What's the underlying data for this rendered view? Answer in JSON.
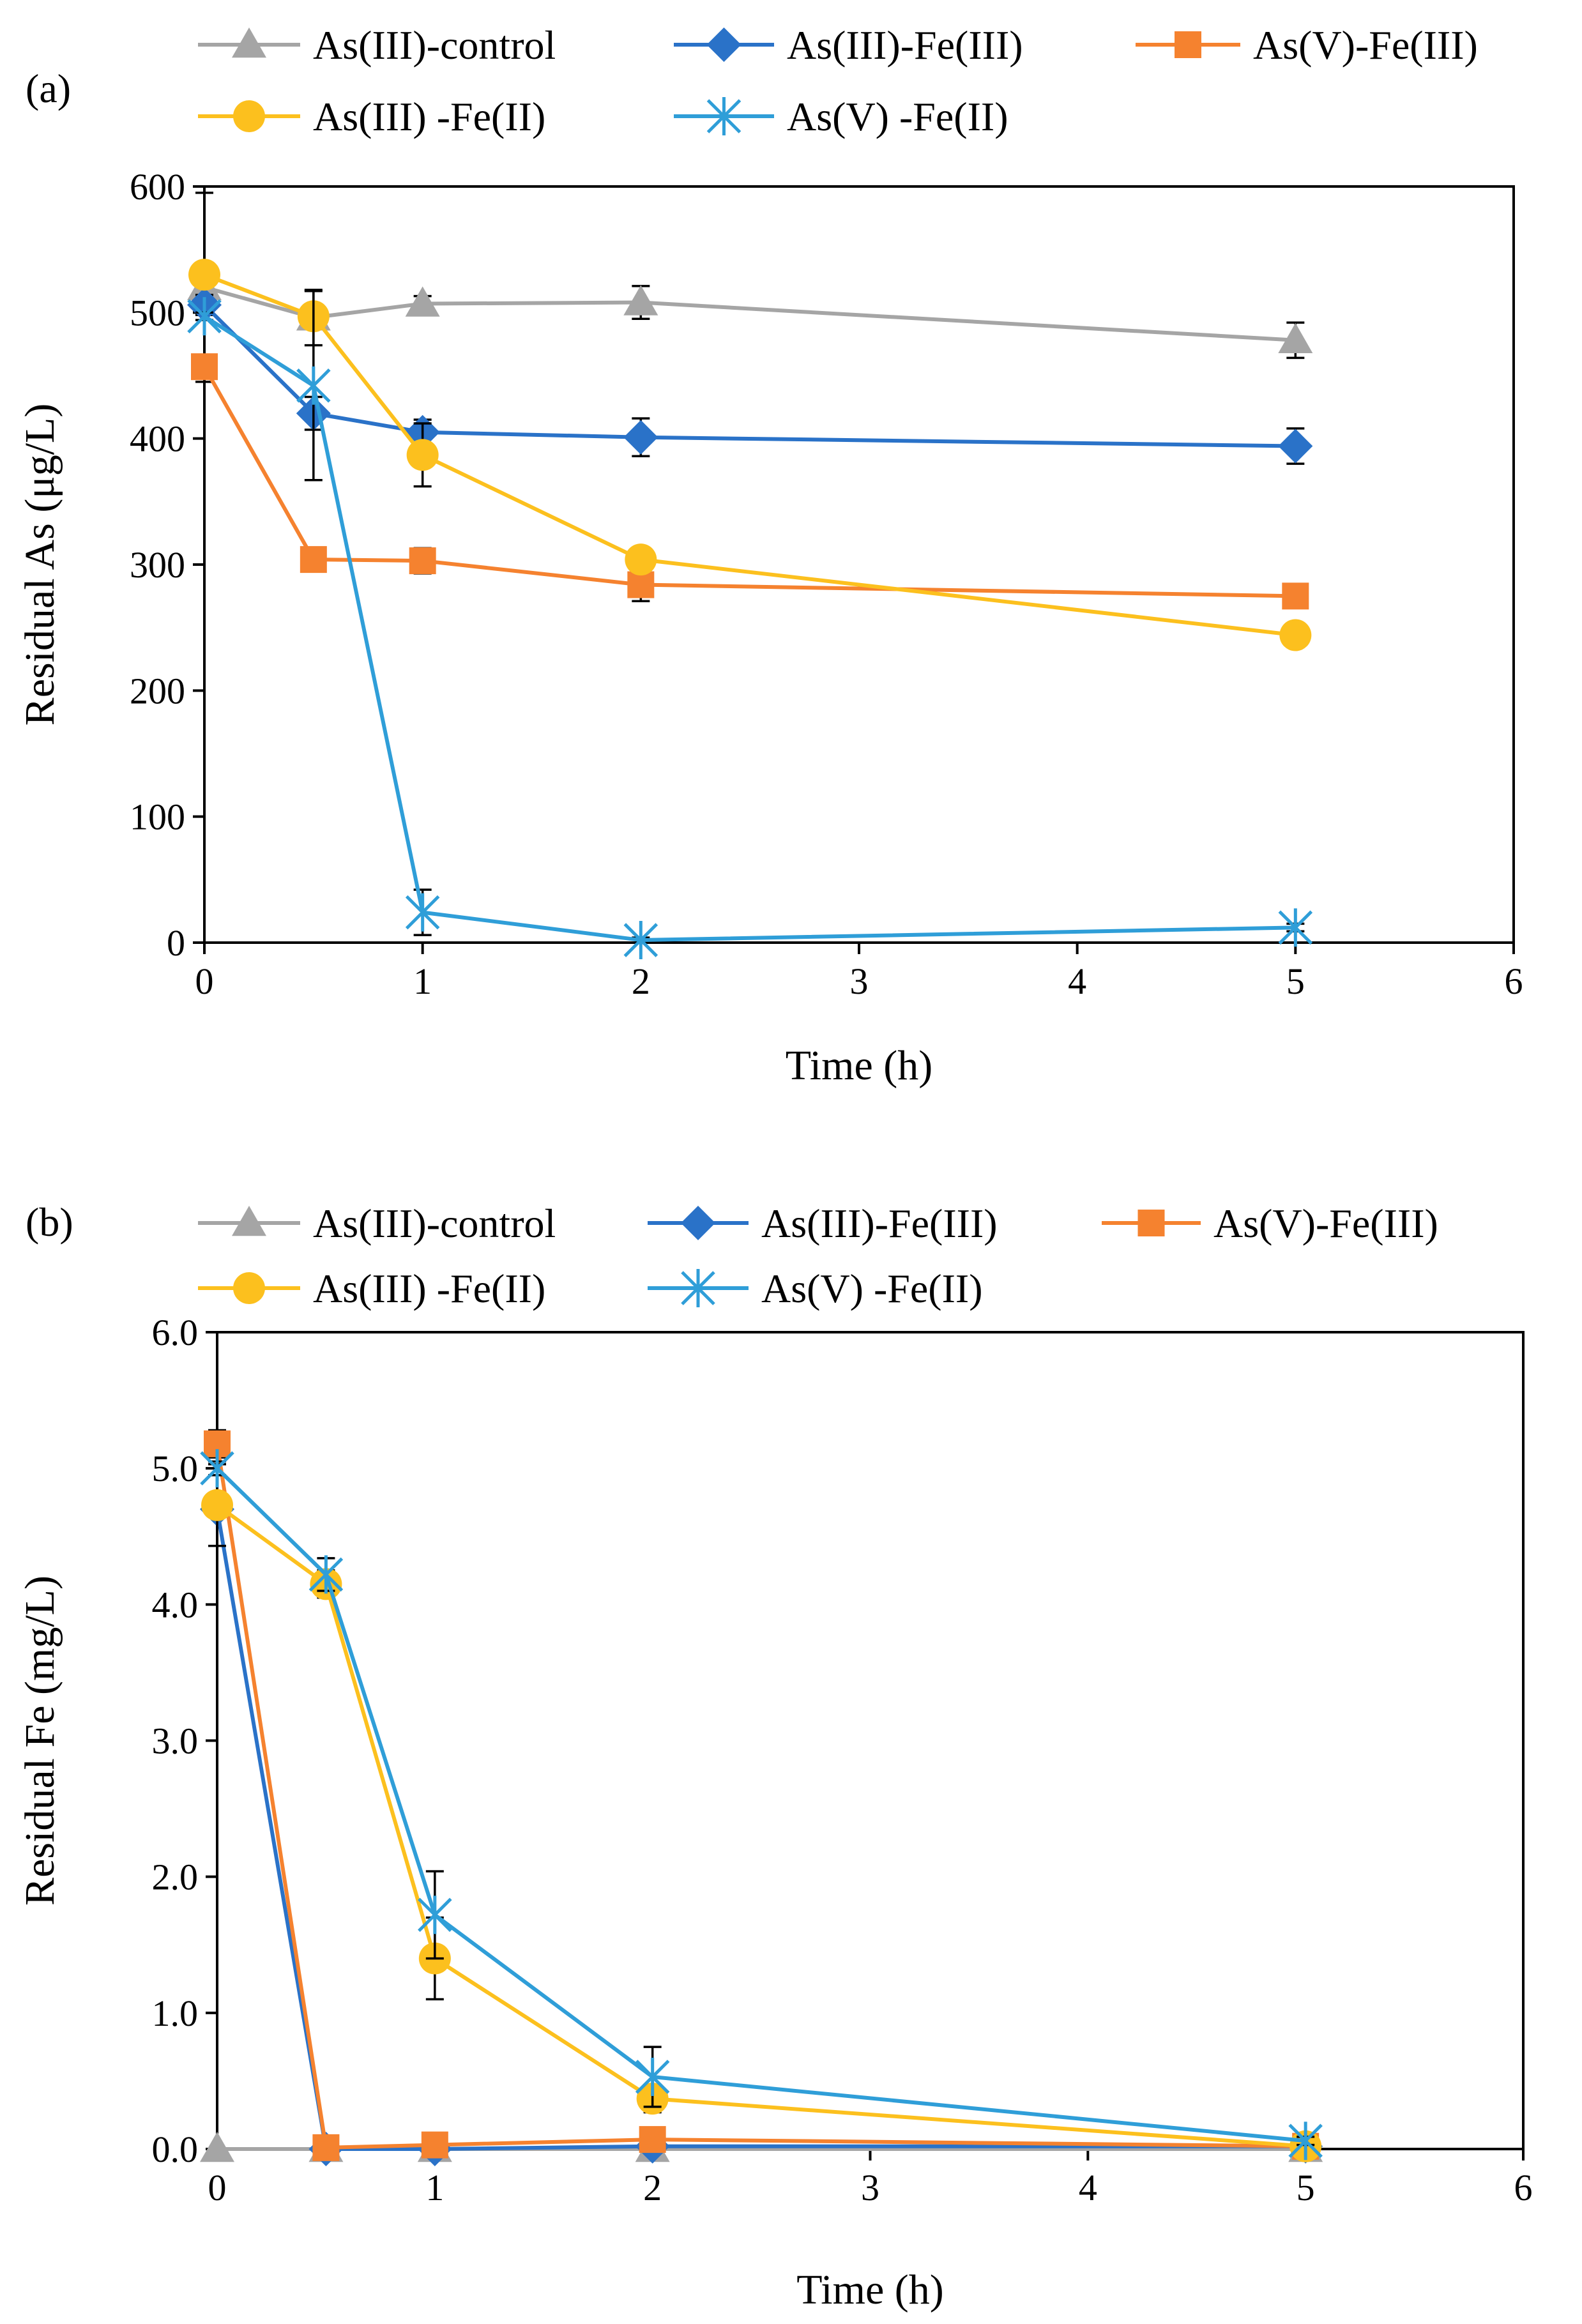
{
  "colors": {
    "As(III)-control": "#a5a5a5",
    "As(III)-Fe(III)": "#2a72c8",
    "As(V)-Fe(III)": "#f5822f",
    "As(III) -Fe(II)": "#fcc01e",
    "As(V) -Fe(II)": "#2f9ed8"
  },
  "chart_data": [
    {
      "type": "line",
      "panel_label": "(a)",
      "xlabel": "Time (h)",
      "ylabel": "Residual As (μg/L)",
      "xlim": [
        0,
        6
      ],
      "ylim": [
        0,
        600
      ],
      "xticks": [
        0,
        1,
        2,
        3,
        4,
        5,
        6
      ],
      "yticks": [
        0,
        100,
        200,
        300,
        400,
        500,
        600
      ],
      "ytick_labels": [
        "0",
        "100",
        "200",
        "300",
        "400",
        "500",
        "600"
      ],
      "legend_position": "top",
      "series": [
        {
          "name": "As(III)-control",
          "marker": "triangle",
          "x": [
            0,
            0.5,
            1,
            2,
            5
          ],
          "y": [
            520,
            496,
            507,
            508,
            478
          ],
          "err": [
            75,
            22,
            6,
            13,
            14
          ]
        },
        {
          "name": "As(III)-Fe(III)",
          "marker": "diamond",
          "x": [
            0,
            0.5,
            1,
            2,
            5
          ],
          "y": [
            506,
            420,
            405,
            401,
            394
          ],
          "err": [
            8,
            13,
            10,
            15,
            14
          ]
        },
        {
          "name": "As(V)-Fe(III)",
          "marker": "square",
          "x": [
            0,
            0.5,
            1,
            2,
            5
          ],
          "y": [
            457,
            304,
            303,
            284,
            275
          ],
          "err": [
            5,
            5,
            10,
            13,
            5
          ]
        },
        {
          "name": "As(III) -Fe(II)",
          "marker": "circle",
          "x": [
            0,
            0.5,
            1,
            2,
            5
          ],
          "y": [
            530,
            497,
            387,
            304,
            244
          ],
          "err": [
            5,
            5,
            25,
            5,
            5
          ]
        },
        {
          "name": "As(V) -Fe(II)",
          "marker": "star",
          "x": [
            0,
            0.5,
            1,
            2,
            5
          ],
          "y": [
            497,
            442,
            24,
            2,
            12
          ],
          "err": [
            3,
            75,
            18,
            2,
            3
          ]
        }
      ]
    },
    {
      "type": "line",
      "panel_label": "(b)",
      "xlabel": "Time (h)",
      "ylabel": "Residual Fe  (mg/L)",
      "xlim": [
        0,
        6
      ],
      "ylim": [
        0,
        6
      ],
      "xticks": [
        0,
        1,
        2,
        3,
        4,
        5,
        6
      ],
      "yticks": [
        0,
        1,
        2,
        3,
        4,
        5,
        6
      ],
      "ytick_labels": [
        "0.0",
        "1.0",
        "2.0",
        "3.0",
        "4.0",
        "5.0",
        "6.0"
      ],
      "legend_position": "top",
      "series": [
        {
          "name": "As(III)-control",
          "marker": "triangle",
          "x": [
            0,
            0.5,
            1,
            2,
            5
          ],
          "y": [
            0,
            0,
            0,
            0,
            0
          ],
          "err": [
            0,
            0,
            0,
            0,
            0
          ]
        },
        {
          "name": "As(III)-Fe(III)",
          "marker": "diamond",
          "x": [
            0,
            0.5,
            1,
            2,
            5
          ],
          "y": [
            4.7,
            0,
            0,
            0.02,
            0.02
          ],
          "err": [
            0.05,
            0,
            0,
            0,
            0
          ]
        },
        {
          "name": "As(V)-Fe(III)",
          "marker": "square",
          "x": [
            0,
            0.5,
            1,
            2,
            5
          ],
          "y": [
            5.18,
            0.01,
            0.03,
            0.07,
            0.02
          ],
          "err": [
            0.1,
            0,
            0.02,
            0.05,
            0
          ]
        },
        {
          "name": "As(III) -Fe(II)",
          "marker": "circle",
          "x": [
            0,
            0.5,
            1,
            2,
            5
          ],
          "y": [
            4.73,
            4.15,
            1.4,
            0.37,
            0.02
          ],
          "err": [
            0.3,
            0.1,
            0.3,
            0.1,
            0.03
          ]
        },
        {
          "name": "As(V) -Fe(II)",
          "marker": "star",
          "x": [
            0,
            0.5,
            1,
            2,
            5
          ],
          "y": [
            5.0,
            4.22,
            1.72,
            0.53,
            0.06
          ],
          "err": [
            0.05,
            0.12,
            0.32,
            0.22,
            0.03
          ]
        }
      ]
    }
  ]
}
